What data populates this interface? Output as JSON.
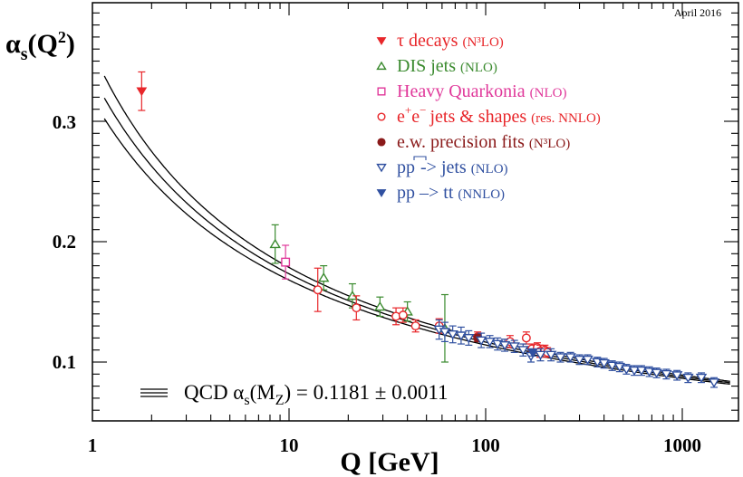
{
  "chart_data": {
    "type": "scatter",
    "title": "",
    "note": "April 2016",
    "ylabel": {
      "base": "α",
      "sub": "s",
      "open": "(Q",
      "sup": "2",
      "close": ")"
    },
    "xlabel": "Q [GeV]",
    "xscale": "log",
    "xlim": [
      1,
      1800
    ],
    "ylim": [
      0.05,
      0.4
    ],
    "x_tick_labels": [
      "1",
      "10",
      "100",
      "1000"
    ],
    "x_ticks": [
      1,
      10,
      100,
      1000
    ],
    "y_tick_labels": [
      "0.1",
      "0.2",
      "0.3"
    ],
    "y_ticks": [
      0.1,
      0.2,
      0.3
    ],
    "legend_position": "top-right",
    "band": {
      "label": {
        "pre": "QCD α",
        "sub1": "s",
        "mid": "(M",
        "sub2": "Z",
        "post": ") = 0.1181 ± 0.0011"
      },
      "alpha_mz": 0.1181,
      "uncertainty": 0.0011,
      "mz": 91.1876
    },
    "series": [
      {
        "name": "τ decays",
        "order": "(N³LO)",
        "marker": "triangle-down-filled",
        "color": "#e8262a",
        "points": [
          {
            "x": 1.78,
            "y": 0.325,
            "err": 0.016
          }
        ]
      },
      {
        "name": "DIS jets",
        "order": "(NLO)",
        "marker": "triangle-up-open",
        "color": "#3a8a2e",
        "points": [
          {
            "x": 8.5,
            "y": 0.198,
            "err": 0.016
          },
          {
            "x": 15,
            "y": 0.17,
            "err": 0.01
          },
          {
            "x": 21,
            "y": 0.155,
            "err": 0.01
          },
          {
            "x": 29,
            "y": 0.146,
            "err": 0.008
          },
          {
            "x": 40,
            "y": 0.142,
            "err": 0.008
          },
          {
            "x": 62,
            "y": 0.128,
            "err": 0.028
          }
        ]
      },
      {
        "name": "Heavy Quarkonia",
        "order": "(NLO)",
        "marker": "square-open",
        "color": "#e0389a",
        "points": [
          {
            "x": 9.6,
            "y": 0.183,
            "err": 0.014
          }
        ]
      },
      {
        "name": "jets & shapes",
        "order": "(res. NNLO)",
        "marker": "circle-open",
        "color": "#e8262a",
        "points": [
          {
            "x": 14,
            "y": 0.16,
            "err": 0.018
          },
          {
            "x": 22,
            "y": 0.145,
            "err": 0.01
          },
          {
            "x": 35,
            "y": 0.138,
            "err": 0.007
          },
          {
            "x": 38,
            "y": 0.139,
            "err": 0.006
          },
          {
            "x": 44,
            "y": 0.13,
            "err": 0.005
          },
          {
            "x": 58,
            "y": 0.13,
            "err": 0.006
          },
          {
            "x": 91,
            "y": 0.121,
            "err": 0.004
          },
          {
            "x": 133,
            "y": 0.117,
            "err": 0.005
          },
          {
            "x": 161,
            "y": 0.12,
            "err": 0.005
          },
          {
            "x": 172,
            "y": 0.111,
            "err": 0.004
          },
          {
            "x": 183,
            "y": 0.112,
            "err": 0.004
          },
          {
            "x": 189,
            "y": 0.109,
            "err": 0.005
          },
          {
            "x": 200,
            "y": 0.11,
            "err": 0.004
          },
          {
            "x": 206,
            "y": 0.108,
            "err": 0.004
          }
        ]
      },
      {
        "name": "e.w. precision fits",
        "order": "(N³LO)",
        "marker": "circle-filled",
        "color": "#8a1a1a",
        "points": [
          {
            "x": 91.2,
            "y": 0.12,
            "err": 0.003
          }
        ]
      },
      {
        "name": "-> jets",
        "order": "(NLO)",
        "marker": "triangle-down-open",
        "color": "#3050a0",
        "points": [
          {
            "x": 58,
            "y": 0.127,
            "err": 0.008
          },
          {
            "x": 62,
            "y": 0.125,
            "err": 0.008
          },
          {
            "x": 68,
            "y": 0.123,
            "err": 0.007
          },
          {
            "x": 75,
            "y": 0.122,
            "err": 0.007
          },
          {
            "x": 82,
            "y": 0.12,
            "err": 0.006
          },
          {
            "x": 95,
            "y": 0.118,
            "err": 0.006
          },
          {
            "x": 105,
            "y": 0.117,
            "err": 0.005
          },
          {
            "x": 115,
            "y": 0.115,
            "err": 0.005
          },
          {
            "x": 125,
            "y": 0.114,
            "err": 0.005
          },
          {
            "x": 140,
            "y": 0.113,
            "err": 0.005
          },
          {
            "x": 155,
            "y": 0.11,
            "err": 0.005
          },
          {
            "x": 170,
            "y": 0.105,
            "err": 0.005
          },
          {
            "x": 190,
            "y": 0.106,
            "err": 0.005
          },
          {
            "x": 215,
            "y": 0.106,
            "err": 0.005
          },
          {
            "x": 240,
            "y": 0.104,
            "err": 0.004
          },
          {
            "x": 270,
            "y": 0.104,
            "err": 0.004
          },
          {
            "x": 300,
            "y": 0.102,
            "err": 0.004
          },
          {
            "x": 330,
            "y": 0.102,
            "err": 0.004
          },
          {
            "x": 370,
            "y": 0.1,
            "err": 0.004
          },
          {
            "x": 400,
            "y": 0.099,
            "err": 0.004
          },
          {
            "x": 440,
            "y": 0.097,
            "err": 0.004
          },
          {
            "x": 480,
            "y": 0.096,
            "err": 0.004
          },
          {
            "x": 520,
            "y": 0.094,
            "err": 0.004
          },
          {
            "x": 570,
            "y": 0.093,
            "err": 0.004
          },
          {
            "x": 620,
            "y": 0.093,
            "err": 0.004
          },
          {
            "x": 680,
            "y": 0.092,
            "err": 0.004
          },
          {
            "x": 740,
            "y": 0.091,
            "err": 0.004
          },
          {
            "x": 830,
            "y": 0.09,
            "err": 0.004
          },
          {
            "x": 940,
            "y": 0.089,
            "err": 0.004
          },
          {
            "x": 1070,
            "y": 0.087,
            "err": 0.004
          },
          {
            "x": 1250,
            "y": 0.087,
            "err": 0.004
          },
          {
            "x": 1450,
            "y": 0.083,
            "err": 0.004
          }
        ]
      },
      {
        "name": "pp –> tt",
        "order": "(NNLO)",
        "marker": "triangle-down-filled",
        "color": "#3050a0",
        "points": [
          {
            "x": 173,
            "y": 0.108,
            "err": 0.003
          }
        ]
      }
    ]
  }
}
